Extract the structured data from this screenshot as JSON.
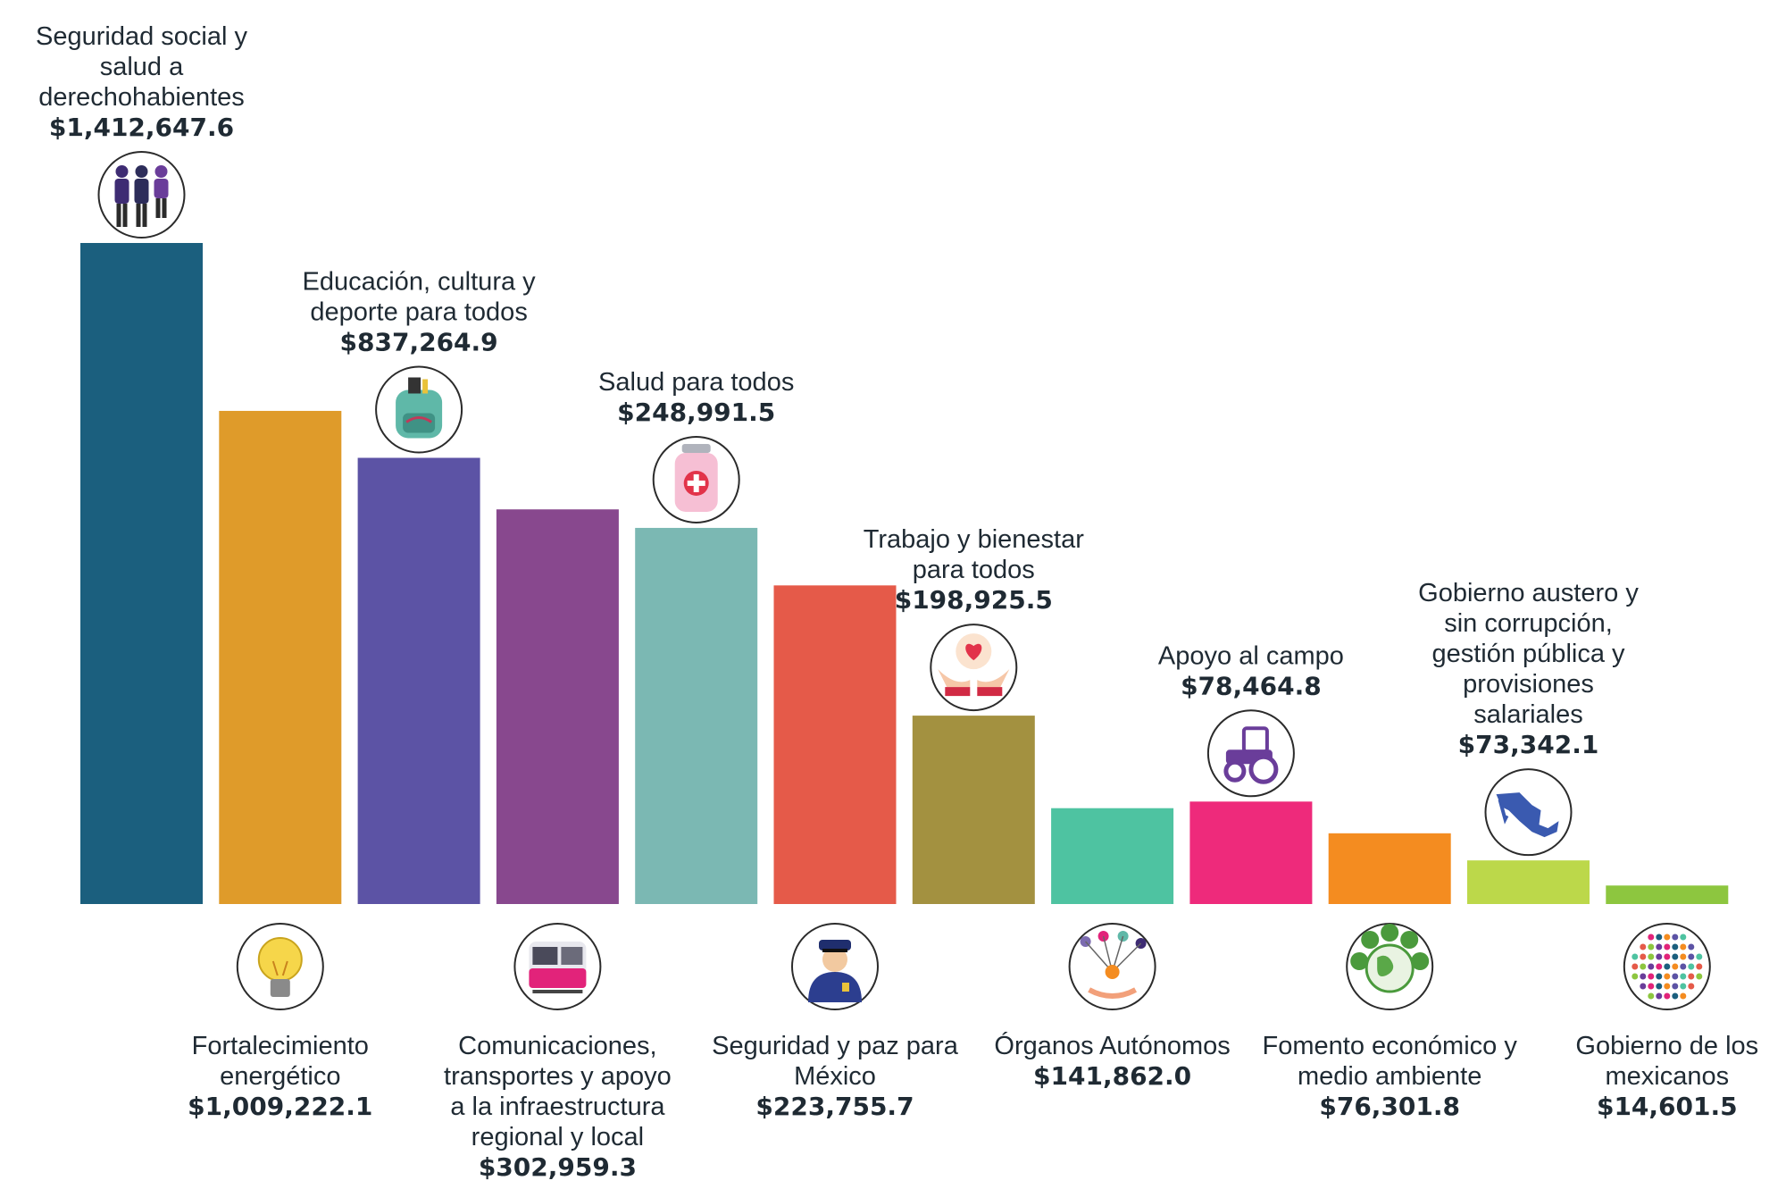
{
  "chart_data": {
    "type": "bar",
    "title": "",
    "xlabel": "",
    "ylabel": "",
    "ylim": [
      0,
      1412647.6
    ],
    "grid": false,
    "legend": "none",
    "categories": [
      {
        "label": [
          "Seguridad social y",
          "salud a",
          "derechohabientes"
        ],
        "value": 1412647.6,
        "value_label": "$1,412,647.6",
        "color": "#1b5f7e",
        "icon": "family-icon"
      },
      {
        "label": [
          "Fortalecimiento",
          "energético"
        ],
        "value": 1009222.1,
        "value_label": "$1,009,222.1",
        "color": "#df9b2a",
        "icon": "lightbulb-icon"
      },
      {
        "label": [
          "Educación, cultura y",
          "deporte para todos"
        ],
        "value": 837264.9,
        "value_label": "$837,264.9",
        "color": "#5c53a5",
        "icon": "backpack-icon"
      },
      {
        "label": [
          "Comunicaciones,",
          "transportes y apoyo",
          "a la infraestructura",
          "regional y local"
        ],
        "value": 302959.3,
        "value_label": "$302,959.3",
        "color": "#88488e",
        "icon": "train-icon"
      },
      {
        "label": [
          "Salud para todos"
        ],
        "value": 248991.5,
        "value_label": "$248,991.5",
        "color": "#7bb8b3",
        "icon": "medicine-bottle-icon"
      },
      {
        "label": [
          "Seguridad y paz para",
          "México"
        ],
        "value": 223755.7,
        "value_label": "$223,755.7",
        "color": "#e55a49",
        "icon": "police-officer-icon"
      },
      {
        "label": [
          "Trabajo y bienestar",
          "para todos"
        ],
        "value": 198925.5,
        "value_label": "$198,925.5",
        "color": "#a39140",
        "icon": "hands-heart-icon"
      },
      {
        "label": [
          "Órganos Autónomos"
        ],
        "value": 141862.0,
        "value_label": "$141,862.0",
        "color": "#4ec3a1",
        "icon": "network-hand-icon"
      },
      {
        "label": [
          "Apoyo al campo"
        ],
        "value": 78464.8,
        "value_label": "$78,464.8",
        "color": "#ee2a7b",
        "icon": "tractor-icon"
      },
      {
        "label": [
          "Fomento económico y",
          "medio ambiente"
        ],
        "value": 76301.8,
        "value_label": "$76,301.8",
        "color": "#f48c20",
        "icon": "globe-trees-icon"
      },
      {
        "label": [
          "Gobierno austero y",
          "sin corrupción,",
          "gestión pública y",
          "provisiones",
          "salariales"
        ],
        "value": 73342.1,
        "value_label": "$73,342.1",
        "color": "#bcd84a",
        "icon": "mexico-map-icon"
      },
      {
        "label": [
          "Gobierno de los",
          "mexicanos"
        ],
        "value": 14601.5,
        "value_label": "$14,601.5",
        "color": "#8dc63f",
        "icon": "crowd-icon"
      }
    ]
  }
}
